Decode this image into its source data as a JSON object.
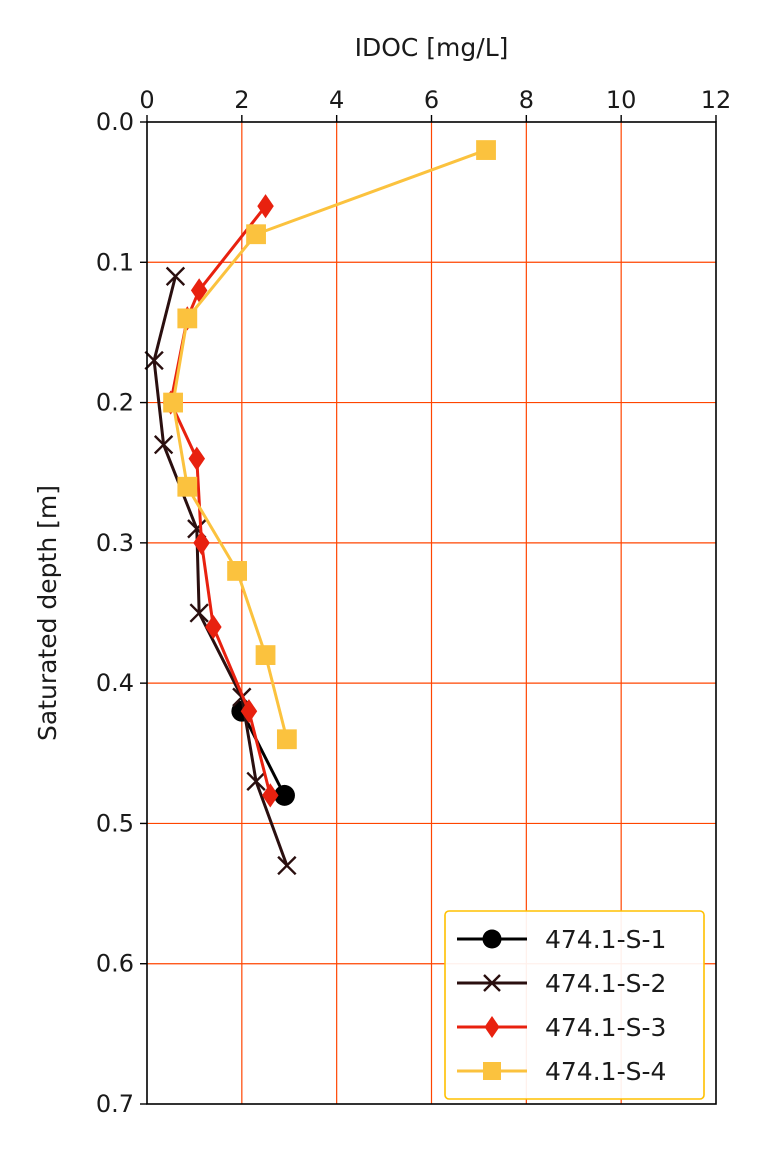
{
  "chart_data": {
    "type": "line",
    "title": "",
    "xlabel": "IDOC [mg/L]",
    "ylabel": "Saturated depth [m]",
    "xlim": [
      0,
      12
    ],
    "ylim": [
      0.0,
      0.7
    ],
    "y_inverted": true,
    "x_axis_position": "top",
    "xticks": [
      "0",
      "2",
      "4",
      "6",
      "8",
      "10",
      "12"
    ],
    "yticks": [
      "0.0",
      "0.1",
      "0.2",
      "0.3",
      "0.4",
      "0.5",
      "0.6",
      "0.7"
    ],
    "grid": true,
    "grid_color": "#ff4500",
    "legend_position": "lower-right",
    "legend_border_color": "#ffc000",
    "series": [
      {
        "name": "474.1-S-1",
        "color": "#000000",
        "marker": "circle",
        "points": [
          [
            2.0,
            0.42
          ],
          [
            2.9,
            0.48
          ]
        ]
      },
      {
        "name": "474.1-S-2",
        "color": "#2a0f0f",
        "marker": "x",
        "points": [
          [
            0.6,
            0.11
          ],
          [
            0.15,
            0.17
          ],
          [
            0.35,
            0.23
          ],
          [
            1.05,
            0.29
          ],
          [
            1.1,
            0.35
          ],
          [
            2.0,
            0.41
          ],
          [
            2.3,
            0.47
          ],
          [
            2.95,
            0.53
          ]
        ]
      },
      {
        "name": "474.1-S-3",
        "color": "#e8210f",
        "marker": "diamond",
        "points": [
          [
            2.5,
            0.06
          ],
          [
            1.1,
            0.12
          ],
          [
            0.85,
            0.14
          ],
          [
            0.5,
            0.2
          ],
          [
            1.05,
            0.24
          ],
          [
            1.15,
            0.3
          ],
          [
            1.4,
            0.36
          ],
          [
            2.15,
            0.42
          ],
          [
            2.6,
            0.48
          ]
        ]
      },
      {
        "name": "474.1-S-4",
        "color": "#fbc23e",
        "marker": "square",
        "points": [
          [
            7.15,
            0.02
          ],
          [
            2.3,
            0.08
          ],
          [
            0.85,
            0.14
          ],
          [
            0.55,
            0.2
          ],
          [
            0.85,
            0.26
          ],
          [
            1.9,
            0.32
          ],
          [
            2.5,
            0.38
          ],
          [
            2.95,
            0.44
          ]
        ]
      }
    ]
  }
}
